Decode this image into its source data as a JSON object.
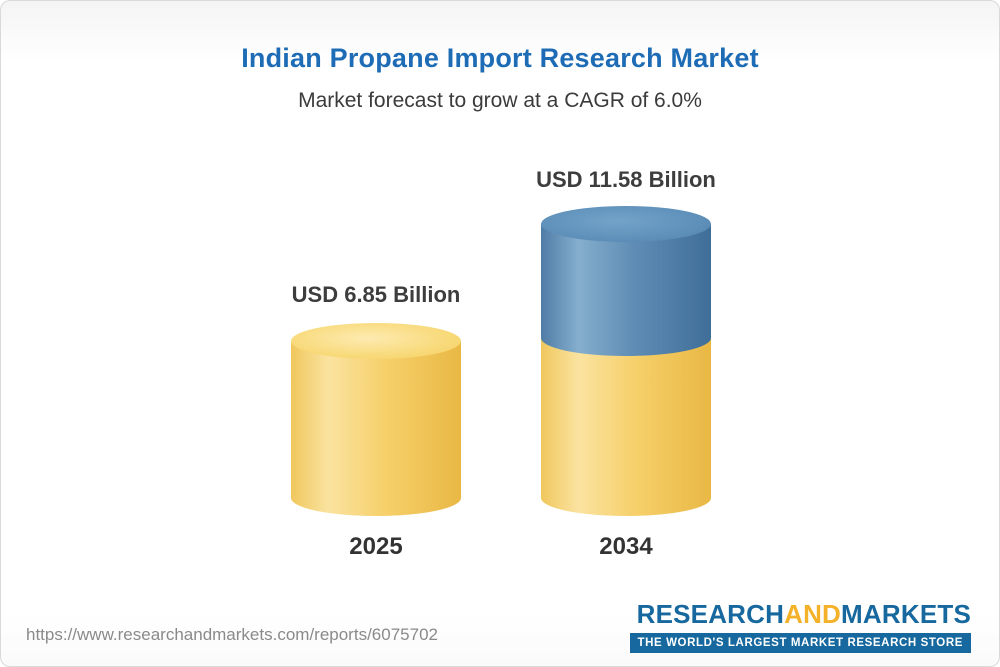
{
  "title": "Indian Propane Import Research Market",
  "subtitle": "Market forecast to grow at a CAGR of 6.0%",
  "chart_data": {
    "type": "bar",
    "categories": [
      "2025",
      "2034"
    ],
    "values": [
      6.85,
      11.58
    ],
    "value_labels": [
      "USD 6.85 Billion",
      "USD 11.58 Billion"
    ],
    "unit": "USD Billion",
    "title": "Indian Propane Import Research Market",
    "subtitle": "Market forecast to grow at a CAGR of 6.0%",
    "cagr_percent": 6.0,
    "colors": {
      "bar_2025": "#f5cd62",
      "bar_2034_growth_segment": "#4f7ca6",
      "bar_2034_base_segment": "#f5cd62",
      "title_text": "#1d6cb5",
      "label_text": "#3d3d3d"
    },
    "legend_position": "none",
    "grid": false
  },
  "footer": {
    "url": "https://www.researchandmarkets.com/reports/6075702",
    "logo": {
      "part1": "RESEARCH",
      "part2": "AND",
      "part3": "MARKETS",
      "tagline": "THE WORLD'S LARGEST MARKET RESEARCH STORE",
      "brand_blue": "#16689e",
      "brand_yellow": "#f3b229"
    }
  }
}
